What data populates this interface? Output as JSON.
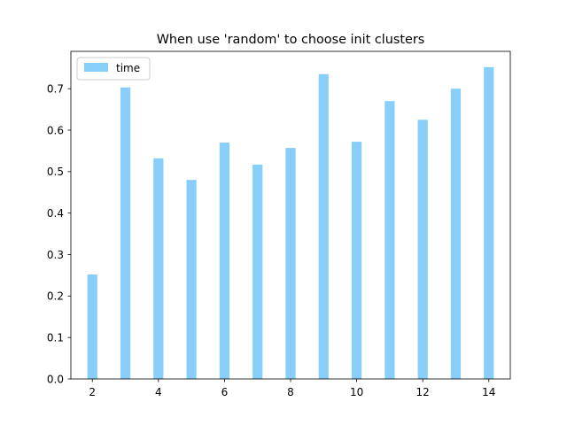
{
  "chart_data": {
    "type": "bar",
    "title": "When use 'random' to choose init clusters",
    "xlabel": "",
    "ylabel": "",
    "x": [
      2,
      3,
      4,
      5,
      6,
      7,
      8,
      9,
      10,
      11,
      12,
      13,
      14
    ],
    "series": [
      {
        "name": "time",
        "values": [
          0.252,
          0.703,
          0.532,
          0.48,
          0.57,
          0.517,
          0.557,
          0.735,
          0.572,
          0.67,
          0.625,
          0.7,
          0.752
        ],
        "color": "#87cefa"
      }
    ],
    "xlim": [
      1.35,
      14.65
    ],
    "ylim": [
      0,
      0.79
    ],
    "xticks": [
      2,
      4,
      6,
      8,
      10,
      12,
      14
    ],
    "yticks": [
      0.0,
      0.1,
      0.2,
      0.3,
      0.4,
      0.5,
      0.6,
      0.7
    ],
    "grid": false,
    "legend_position": "upper left"
  }
}
